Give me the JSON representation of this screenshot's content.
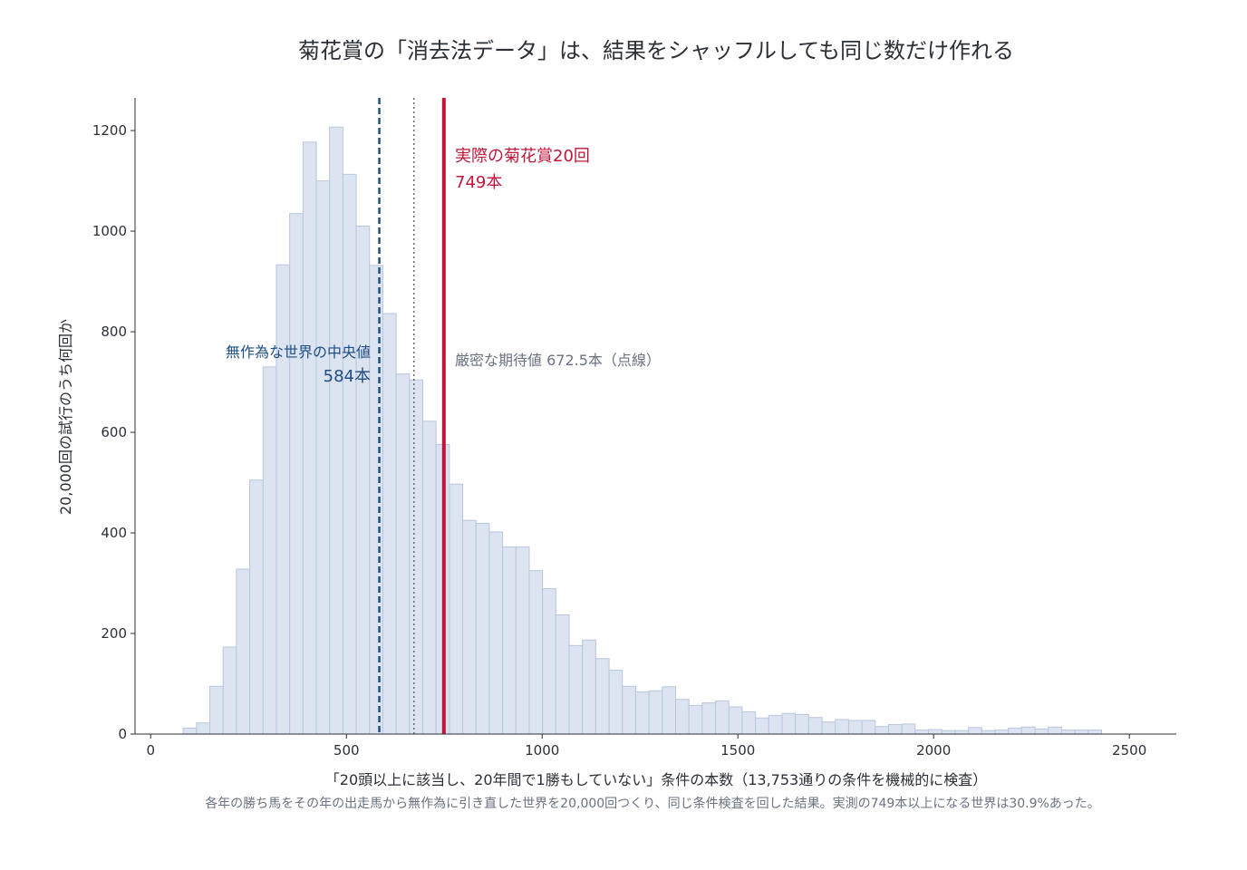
{
  "chart_data": {
    "type": "bar",
    "title": "菊花賞の「消去法データ」は、結果をシャッフルしても同じ数だけ作れる",
    "xlabel": "「20頭以上に該当し、20年間で1勝もしていない」条件の本数（13,753通りの条件を機械的に検査）",
    "ylabel": "20,000回の試行のうち何回か",
    "caption": "各年の勝ち馬をその年の出走馬から無作為に引き直した世界を20,000回つくり、同じ条件検査を回した結果。実測の749本以上になる世界は30.9%あった。",
    "x_ticks": [
      "0",
      "500",
      "1000",
      "1500",
      "2000",
      "2500"
    ],
    "y_ticks": [
      "0",
      "200",
      "400",
      "600",
      "800",
      "1000",
      "1200"
    ],
    "xlim": [
      -40,
      2620
    ],
    "ylim": [
      0,
      1265
    ],
    "bin_width": 34,
    "bin_start": 83,
    "counts": [
      12,
      22,
      95,
      173,
      328,
      505,
      730,
      933,
      1035,
      1177,
      1100,
      1207,
      1113,
      1010,
      932,
      836,
      716,
      704,
      622,
      576,
      497,
      425,
      419,
      402,
      372,
      372,
      325,
      289,
      237,
      176,
      187,
      150,
      127,
      95,
      84,
      86,
      94,
      69,
      57,
      62,
      66,
      54,
      44,
      32,
      37,
      41,
      39,
      33,
      24,
      29,
      27,
      27,
      15,
      19,
      20,
      8,
      9,
      7,
      7,
      13,
      7,
      8,
      12,
      14,
      10,
      14,
      8,
      8,
      8
    ],
    "colors": {
      "bar_fill": "#dce3f1",
      "bar_stroke": "#b9c6dd",
      "median": "#1f4e85",
      "actual": "#c0163a",
      "expected": "#555555"
    },
    "annotations": {
      "actual": {
        "value": 749,
        "label_line1": "実際の菊花賞20回",
        "label_line2": "749本"
      },
      "median": {
        "value": 584,
        "label_line1": "無作為な世界の中央値",
        "label_line2": "584本"
      },
      "expected": {
        "value": 672.5,
        "label": "厳密な期待値 672.5本（点線）"
      }
    }
  }
}
